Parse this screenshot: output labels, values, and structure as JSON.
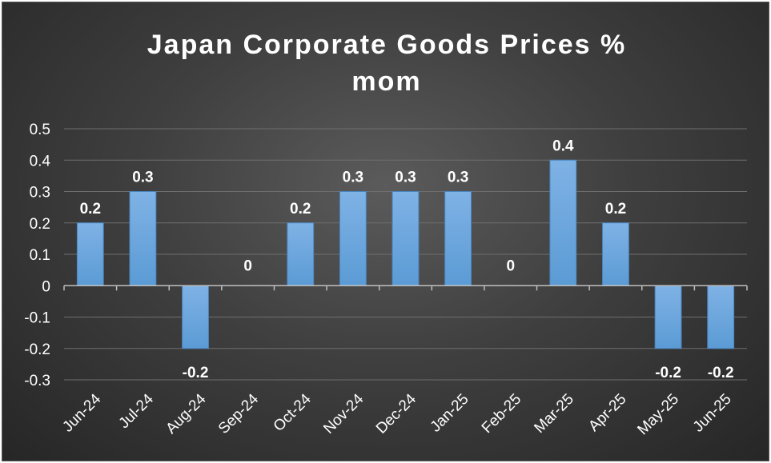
{
  "chart_data": {
    "type": "bar",
    "title_lines": [
      "Japan Corporate Goods Prices %",
      "mom"
    ],
    "categories": [
      "Jun-24",
      "Jul-24",
      "Aug-24",
      "Sep-24",
      "Oct-24",
      "Nov-24",
      "Dec-24",
      "Jan-25",
      "Feb-25",
      "Mar-25",
      "Apr-25",
      "May-25",
      "Jun-25"
    ],
    "values": [
      0.2,
      0.3,
      -0.2,
      0,
      0.2,
      0.3,
      0.3,
      0.3,
      0,
      0.4,
      0.2,
      -0.2,
      -0.2
    ],
    "data_labels": [
      "0.2",
      "0.3",
      "-0.2",
      "0",
      "0.2",
      "0.3",
      "0.3",
      "0.3",
      "0",
      "0.4",
      "0.2",
      "-0.2",
      "-0.2"
    ],
    "y_ticks": [
      0.5,
      0.4,
      0.3,
      0.2,
      0.1,
      0,
      -0.1,
      -0.2,
      -0.3
    ],
    "y_tick_labels": [
      "0.5",
      "0.4",
      "0.3",
      "0.2",
      "0.1",
      "0",
      "-0.1",
      "-0.2",
      "-0.3"
    ],
    "ylim": [
      -0.3,
      0.5
    ],
    "grid": true,
    "bar_color": "#5b9bd5",
    "bar_color_light": "#7fb2e5",
    "background_color": "#404040",
    "xlabel": "",
    "ylabel": ""
  }
}
